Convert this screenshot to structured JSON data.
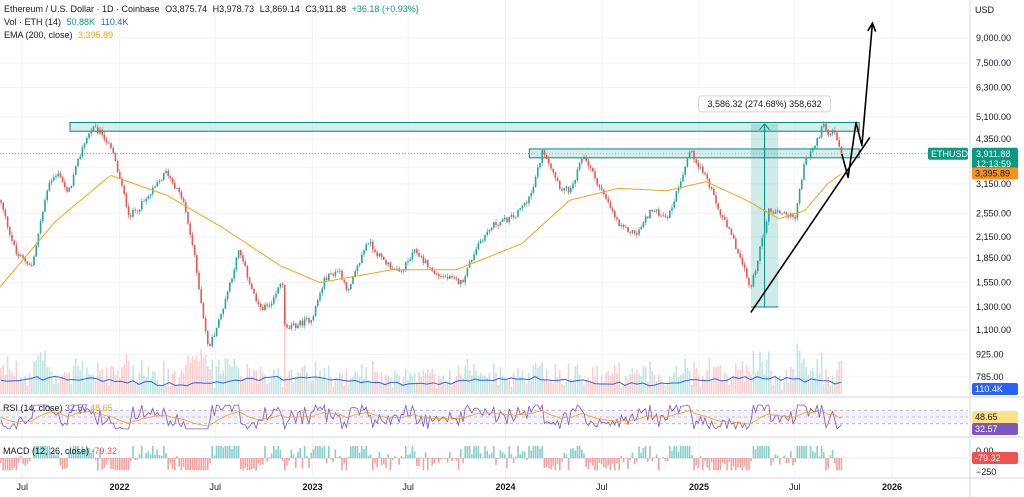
{
  "header": {
    "symbol": "Ethereum / U.S. Dollar · 1D · Coinbase",
    "open": "O3,875.74",
    "high": "H3,978.73",
    "low": "L3,869.14",
    "close": "C3,911.88",
    "change": "+36.18 (+0.93%)",
    "vol_label": "Vol · ETH (14)",
    "vol_value1": "50.88K",
    "vol_value2": "110.4K",
    "ema_label": "EMA (200, close)",
    "ema_value": "3,395.89"
  },
  "currency": "USD",
  "rsi": {
    "label": "RSI (14, close)",
    "value1": "32.57",
    "value2": "48.65"
  },
  "macd": {
    "label": "MACD (12, 26, close)",
    "value": "-79.32"
  },
  "tags": {
    "ticker": "ETHUSD",
    "price": "3,911.88",
    "countdown": "12:13:59",
    "ema": "3,395.89",
    "volume": "110.4K",
    "rsi_hi": "48.65",
    "rsi_lo": "32.57",
    "macd_zero": "0.00",
    "macd_val": "-79.32",
    "macd_neg": "−250"
  },
  "measure_label": "3,586.32 (274.68%) 358,632",
  "colors": {
    "up": "#26a69a",
    "down": "#ef5350",
    "ema": "#f7a21b",
    "volume_line": "#2962ff",
    "rsi_line": "#7e57c2",
    "rsi_band": "#ede7f6",
    "zone_fill": "#b2dfdb",
    "zone_stroke": "#00897b",
    "tag_green": "#089981",
    "tag_orange": "#f7931a",
    "tag_blue": "#2962ff",
    "tag_yellow": "#ffe082"
  },
  "chart_data": {
    "type": "candlestick",
    "title": "Ethereum / U.S. Dollar · 1D · Coinbase",
    "y_scale": "log",
    "ylim": [
      700,
      11000
    ],
    "y_ticks": [
      9000,
      7500,
      6300,
      5100,
      4350,
      3550,
      3150,
      2550,
      2150,
      1850,
      1550,
      1300,
      1100,
      925,
      785
    ],
    "y_tick_labels": [
      "9,000.00",
      "7,500.00",
      "6,300.00",
      "5,100.00",
      "4,350.00",
      "3,550.00",
      "3,150.00",
      "2,550.00",
      "2,150.00",
      "1,850.00",
      "1,550.00",
      "1,300.00",
      "1,100.00",
      "925.00",
      "785.00"
    ],
    "x_ticks": [
      "2021-07-01",
      "2022-01-01",
      "2022-07-01",
      "2023-01-01",
      "2023-07-01",
      "2024-01-01",
      "2024-07-01",
      "2025-01-01",
      "2025-07-01",
      "2026-01-01"
    ],
    "x_tick_labels": [
      "Jul",
      "2022",
      "Jul",
      "2023",
      "Jul",
      "2024",
      "Jul",
      "2025",
      "Jul",
      "2026"
    ],
    "price_path": [
      [
        "2021-05-20",
        2800
      ],
      [
        "2021-06-20",
        1900
      ],
      [
        "2021-07-20",
        1750
      ],
      [
        "2021-08-20",
        3200
      ],
      [
        "2021-09-10",
        3400
      ],
      [
        "2021-09-25",
        2900
      ],
      [
        "2021-10-25",
        4200
      ],
      [
        "2021-11-10",
        4700
      ],
      [
        "2021-12-01",
        4500
      ],
      [
        "2021-12-20",
        3900
      ],
      [
        "2022-01-20",
        2500
      ],
      [
        "2022-02-20",
        2800
      ],
      [
        "2022-03-31",
        3450
      ],
      [
        "2022-05-01",
        2800
      ],
      [
        "2022-05-20",
        2000
      ],
      [
        "2022-06-18",
        960
      ],
      [
        "2022-07-10",
        1200
      ],
      [
        "2022-08-15",
        1950
      ],
      [
        "2022-09-20",
        1300
      ],
      [
        "2022-10-15",
        1300
      ],
      [
        "2022-11-05",
        1600
      ],
      [
        "2022-11-10",
        1100
      ],
      [
        "2022-12-31",
        1200
      ],
      [
        "2023-01-25",
        1600
      ],
      [
        "2023-02-20",
        1700
      ],
      [
        "2023-03-10",
        1450
      ],
      [
        "2023-04-15",
        2100
      ],
      [
        "2023-05-10",
        1850
      ],
      [
        "2023-06-15",
        1650
      ],
      [
        "2023-07-15",
        1950
      ],
      [
        "2023-08-20",
        1650
      ],
      [
        "2023-10-10",
        1550
      ],
      [
        "2023-11-10",
        2050
      ],
      [
        "2023-12-10",
        2350
      ],
      [
        "2024-01-20",
        2500
      ],
      [
        "2024-02-20",
        2950
      ],
      [
        "2024-03-12",
        4050
      ],
      [
        "2024-04-15",
        3050
      ],
      [
        "2024-05-05",
        3000
      ],
      [
        "2024-05-27",
        3900
      ],
      [
        "2024-07-05",
        2900
      ],
      [
        "2024-08-05",
        2300
      ],
      [
        "2024-09-06",
        2200
      ],
      [
        "2024-10-01",
        2600
      ],
      [
        "2024-11-05",
        2500
      ],
      [
        "2024-12-15",
        4000
      ],
      [
        "2025-01-15",
        3300
      ],
      [
        "2025-02-03",
        2700
      ],
      [
        "2025-03-10",
        2050
      ],
      [
        "2025-04-09",
        1480
      ],
      [
        "2025-05-13",
        2600
      ],
      [
        "2025-06-15",
        2550
      ],
      [
        "2025-07-01",
        2450
      ],
      [
        "2025-07-20",
        3700
      ],
      [
        "2025-08-10",
        4200
      ],
      [
        "2025-08-24",
        4850
      ],
      [
        "2025-09-01",
        4400
      ],
      [
        "2025-09-14",
        4650
      ],
      [
        "2025-09-25",
        3950
      ],
      [
        "2025-09-28",
        3911.88
      ]
    ],
    "ema_path": [
      [
        "2021-05-20",
        1500
      ],
      [
        "2021-09-01",
        2400
      ],
      [
        "2021-12-15",
        3350
      ],
      [
        "2022-04-01",
        2900
      ],
      [
        "2022-07-15",
        2300
      ],
      [
        "2022-11-01",
        1750
      ],
      [
        "2023-01-15",
        1550
      ],
      [
        "2023-06-01",
        1700
      ],
      [
        "2023-10-01",
        1700
      ],
      [
        "2024-02-01",
        2050
      ],
      [
        "2024-05-01",
        2800
      ],
      [
        "2024-08-01",
        3050
      ],
      [
        "2024-11-01",
        3000
      ],
      [
        "2025-01-15",
        3200
      ],
      [
        "2025-04-01",
        2800
      ],
      [
        "2025-06-01",
        2450
      ],
      [
        "2025-07-20",
        2600
      ],
      [
        "2025-09-01",
        3150
      ],
      [
        "2025-09-28",
        3395.89
      ]
    ],
    "last_price": 3911.88,
    "ema_last": 3395.89,
    "resistance_zones": [
      {
        "from": "2021-05-20",
        "to": "2025-10-31",
        "low": 4600,
        "high": 4900
      },
      {
        "from": "2024-02-15",
        "to": "2025-10-31",
        "low": 3800,
        "high": 4050
      }
    ],
    "measure": {
      "from": "2025-04-09",
      "to": "2025-05-31",
      "low": 1300,
      "high": 4850,
      "label": "3,586.32 (274.68%) 358,632"
    },
    "trendline": {
      "from": [
        "2025-04-09",
        1250
      ],
      "to": [
        "2025-11-20",
        4400
      ]
    },
    "projection_path": [
      [
        "2025-09-28",
        3911.88
      ],
      [
        "2025-10-10",
        3300
      ],
      [
        "2025-10-25",
        4900
      ],
      [
        "2025-11-05",
        4150
      ],
      [
        "2025-11-25",
        10000
      ]
    ],
    "rsi": {
      "label": "RSI (14, close)",
      "value": 32.57,
      "ma_value": 48.65,
      "band": [
        30,
        70
      ],
      "ylim": [
        0,
        100
      ]
    },
    "macd": {
      "label": "MACD (12, 26, close)",
      "value": -79.32
    },
    "volume": {
      "label": "Vol · ETH (14)",
      "value": 50.88,
      "ma_value": 110.4,
      "unit": "K"
    }
  }
}
